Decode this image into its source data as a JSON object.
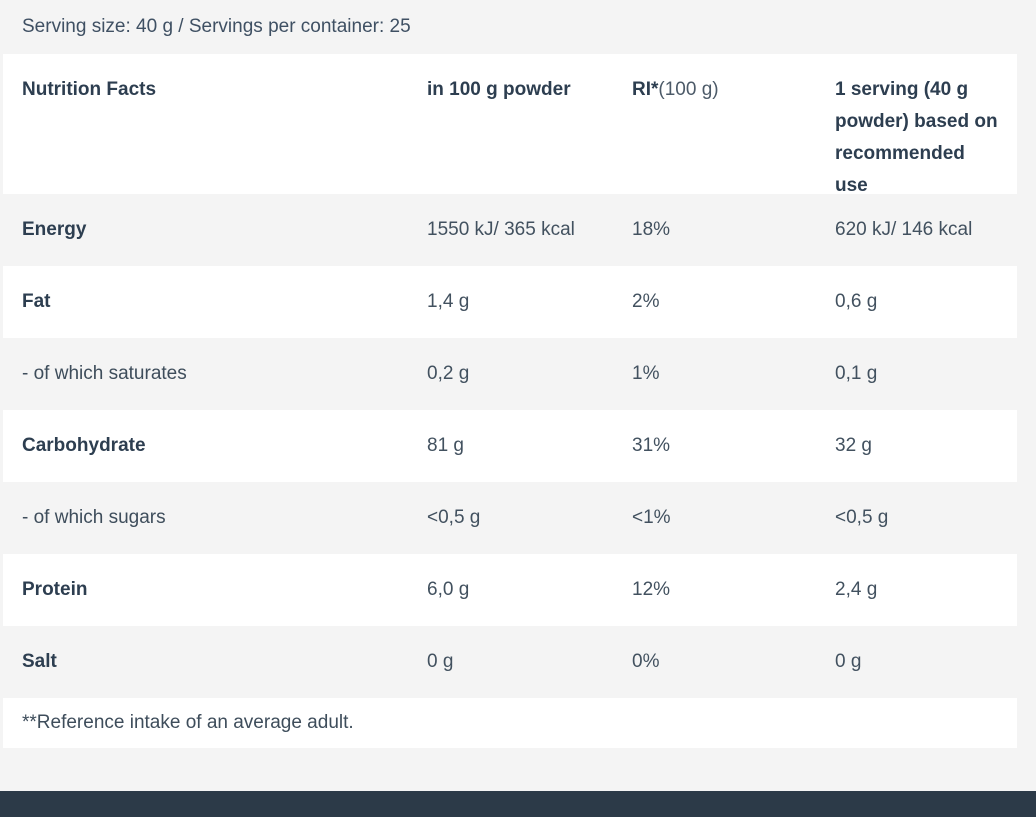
{
  "serving_info": "Serving size: 40 g / Servings per container: 25",
  "table": {
    "header": {
      "col1": "Nutrition Facts",
      "col2": "in 100 g powder",
      "col3_bold": "RI*",
      "col3_regular": "(100 g)",
      "col4": "1 serving (40 g powder) based on recommended use"
    },
    "rows": [
      {
        "label": "Energy",
        "per_100g": "1550 kJ/ 365 kcal",
        "ri_100g": "18%",
        "per_serving": "620 kJ/ 146 kcal"
      },
      {
        "label": "Fat",
        "per_100g": "1,4 g",
        "ri_100g": "2%",
        "per_serving": "0,6 g"
      },
      {
        "label": "- of which saturates",
        "per_100g": "0,2 g",
        "ri_100g": "1%",
        "per_serving": "0,1 g"
      },
      {
        "label": "Carbohydrate",
        "per_100g": "81 g",
        "ri_100g": "31%",
        "per_serving": "32 g"
      },
      {
        "label": "- of which sugars",
        "per_100g": "<0,5 g",
        "ri_100g": "<1%",
        "per_serving": "<0,5 g"
      },
      {
        "label": "Protein",
        "per_100g": "6,0 g",
        "ri_100g": "12%",
        "per_serving": "2,4 g"
      },
      {
        "label": "Salt",
        "per_100g": "0 g",
        "ri_100g": "0%",
        "per_serving": "0 g"
      }
    ],
    "footnote": "**Reference intake of an average adult."
  },
  "colors": {
    "page_background": "#f4f4f4",
    "row_white": "#ffffff",
    "text_primary": "#2d3e50",
    "text_secondary": "#42515f",
    "bottom_bar": "#2c3a48"
  }
}
